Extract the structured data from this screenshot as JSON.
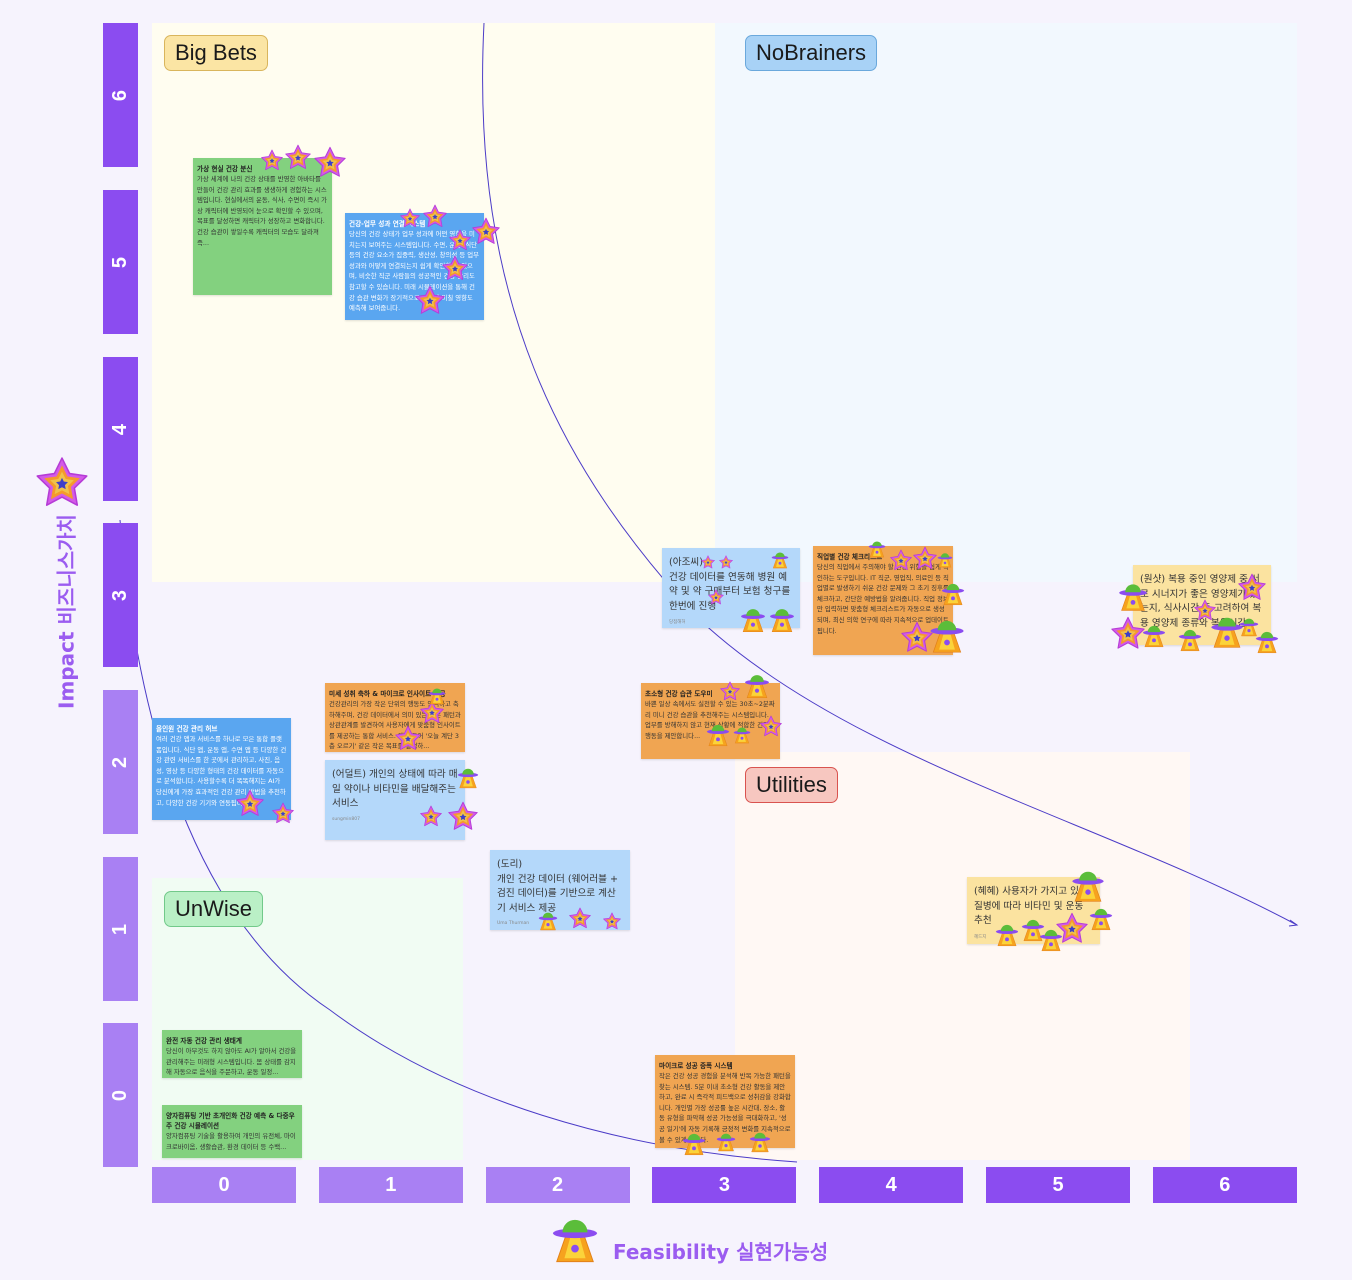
{
  "board": {
    "quadrants": [
      {
        "id": "big-bets",
        "label": "Big Bets",
        "bg": "#fffdf0",
        "label_bg": "#fbe5a4",
        "label_border": "#d9b55c"
      },
      {
        "id": "nobrainers",
        "label": "NoBrainers",
        "bg": "#f2f8fe",
        "label_bg": "#a8d2f6",
        "label_border": "#6aa8dc"
      },
      {
        "id": "unwise",
        "label": "UnWise",
        "bg": "#f1fcf3",
        "label_bg": "#baf0c6",
        "label_border": "#72c98a"
      },
      {
        "id": "utilities",
        "label": "Utilities",
        "bg": "#fff8f4",
        "label_bg": "#f7c7c0",
        "label_border": "#d9534f"
      }
    ],
    "y_axis": {
      "title": "Impact 비즈니스가치",
      "ticks": [
        "6",
        "5",
        "4",
        "3",
        "2",
        "1",
        "0"
      ],
      "icon": "star-sticker-icon"
    },
    "x_axis": {
      "title": "Feasibility 실현가능성",
      "ticks": [
        "0",
        "1",
        "2",
        "3",
        "4",
        "5",
        "6"
      ],
      "icon": "ufo-sticker-icon"
    },
    "colors": {
      "axis_dark": "#8b4cf0",
      "axis_light": "#a980f3",
      "curve": "#4b3bc7",
      "title": "#9b5cf0"
    }
  },
  "notes": [
    {
      "title": "가상 현실 건강 분신",
      "body": "가상 세계에 나의 건강 상태를 반영한 아바타를 만들어 건강 관리 효과를 생생하게 경험하는 시스템입니다. 현실에서의 운동, 식사, 수면이 즉시 가상 캐릭터에 반영되어 눈으로 확인할 수 있으며, 목표를 달성하면 캐릭터가 성장하고 변화합니다. 건강 습관이 쌓일수록 캐릭터의 모습도 달라져 즉..."
    },
    {
      "title": "건강-업무 성과 연결 시스템",
      "body": "당신의 건강 상태가 업무 성과에 어떤 영향을 미치는지 보여주는 시스템입니다. 수면, 운동, 식단 등의 건강 요소가 집중력, 생산성, 창의성 등 업무 성과와 어떻게 연결되는지 쉽게 확인할 수 있으며, 비슷한 직군 사람들의 성공적인 건강 관리도 참고할 수 있습니다. 미래 시뮬레이션을 통해 건강 습관 변화가 장기적으로 업무에 미칠 영향도 예측해 보여줍니다."
    },
    {
      "title": "올인원 건강 관리 허브",
      "body": "여러 건강 앱과 서비스를 하나로 모은 통합 플랫폼입니다. 식단 앱, 운동 앱, 수면 앱 등 다양한 건강 관련 서비스를 한 곳에서 관리하고, 사진, 음성, 영상 등 다양한 형태의 건강 데이터를 자동으로 분석합니다. 사용할수록 더 똑똑해지는 AI가 당신에게 가장 효과적인 건강 관리 방법을 추천하고, 다양한 건강 기기와 연동됩니다."
    },
    {
      "title": "미세 성취 축하 & 마이크로 인사이트 제공",
      "body": "건강관리의 가장 작은 단위의 행동도 인식하고 축하해주며, 건강 데이터에서 의미 있는 작은 패턴과 상관관계를 발견하여 사용자에게 맞춤형 인사이트를 제공하는 통합 서비스. 예를 들어 '오늘 계단 3층 오르기' 같은 작은 목표를 달성하..."
    },
    {
      "title": "",
      "body": "(어덜트) 개인의 상태에 따라 매일 약이나 비타민을 배달해주는 서비스",
      "author": "sungmin807"
    },
    {
      "title": "",
      "body": "(아조씨)\n건강 데이터를 연동해 병원 예약 및 약 구매부터 보험 청구를 한번에 진행",
      "author": "당점해허"
    },
    {
      "title": "직업별 건강 체크리스트",
      "body": "당신의 직업에서 주의해야 할 건강 위험을 쉽게 확인하는 도구입니다. IT 직군, 영업직, 의료인 등 직업별로 발생하기 쉬운 건강 문제와 그 초기 징후를 체크하고, 간단한 예방법을 알려줍니다. 직업 정보만 입력하면 맞춤형 체크리스트가 자동으로 생성되며, 최신 의학 연구에 따라 지속적으로 업데이트됩니다."
    },
    {
      "title": "초소형 건강 습관 도우미",
      "body": "바쁜 일상 속에서도 실천할 수 있는 30초~2분짜리 미니 건강 습관을 추천해주는 시스템입니다. 업무를 방해하지 않고 현재 상황에 적합한 건강 행동을 제안합니다..."
    },
    {
      "title": "",
      "body": "(도리)\n개인 건강 데이터 (웨어러블 + 검진 데이터)를 기반으로 계산기 서비스 제공",
      "author": "Uma Thurman"
    },
    {
      "title": "",
      "body": "(원샷) 복용 중인 영양제 중 서로 시너지가 좋은 영양제가 있는지, 식사시간 등 고려하여 복용 영양제 종류와 복용시간"
    },
    {
      "title": "",
      "body": "(혜혜) 사용자가 가지고 있는 질병에 따라 비타민 및 운동 추천",
      "author": "혜드지"
    },
    {
      "title": "완전 자동 건강 관리 생태계",
      "body": "당신이 아무것도 하지 않아도 AI가 알아서 건강을 관리해주는 미래형 시스템입니다. 몸 상태를 감지해 자동으로 음식을 주문하고, 운동 일정..."
    },
    {
      "title": "양자컴퓨팅 기반 초개인화 건강 예측 & 다중우주 건강 시뮬레이션",
      "body": "양자컴퓨팅 기술을 활용하여 개인의 유전체, 마이크로바이옴, 생활습관, 환경 데이터 등 수백..."
    },
    {
      "title": "마이크로 성공 증폭 시스템",
      "body": "작은 건강 성공 경험을 분석해 반복 가능한 패턴을 찾는 시스템. 5분 이내 초소형 건강 활동을 제안하고, 완료 시 즉각적 피드백으로 성취감을 강화합니다. 개인별 가장 성공률 높은 시간대, 장소, 활동 유형을 파악해 성공 가능성을 극대화하고, '성공 일기'에 자동 기록해 긍정적 변화를 지속적으로 볼 수 있게 합니다."
    }
  ]
}
